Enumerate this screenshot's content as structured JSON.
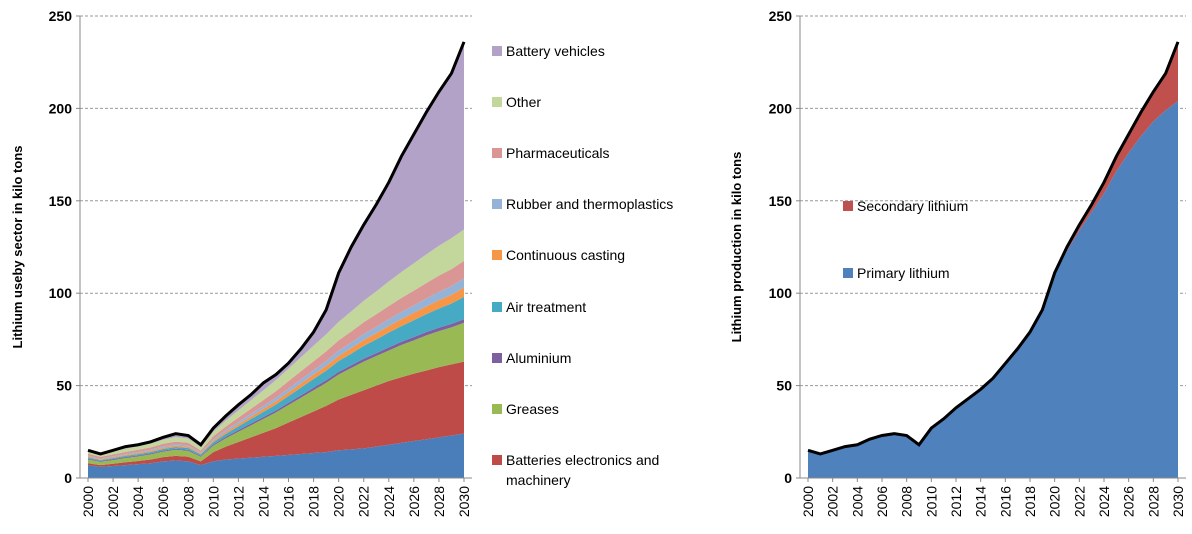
{
  "chart_data": [
    {
      "type": "area",
      "stacked": true,
      "legend": "right",
      "grid": true,
      "y_label": "Lithium useby sector  in kilo tons",
      "x": [
        2000,
        2001,
        2002,
        2003,
        2004,
        2005,
        2006,
        2007,
        2008,
        2009,
        2010,
        2011,
        2012,
        2013,
        2014,
        2015,
        2016,
        2017,
        2018,
        2019,
        2020,
        2021,
        2022,
        2023,
        2024,
        2025,
        2026,
        2027,
        2028,
        2029,
        2030
      ],
      "xlim": [
        2000,
        2030
      ],
      "xticks": [
        2000,
        2002,
        2004,
        2006,
        2008,
        2010,
        2012,
        2014,
        2016,
        2018,
        2020,
        2022,
        2024,
        2026,
        2028,
        2030
      ],
      "ylim": [
        0,
        250
      ],
      "yticks": [
        0,
        50,
        100,
        150,
        200,
        250
      ],
      "series": [
        {
          "color": "#4a7ebb",
          "values": [
            7,
            6,
            6.5,
            7,
            7.5,
            8,
            9,
            9.5,
            9,
            7,
            9,
            10,
            10.5,
            11,
            11.5,
            12,
            12.5,
            13,
            13.5,
            14,
            15,
            15.5,
            16,
            17,
            18,
            19,
            20,
            21,
            22,
            23,
            24
          ]
        },
        {
          "name": "Batteries electronics and machinery",
          "color": "#be4b48",
          "values": [
            1,
            1,
            1.2,
            1.5,
            1.7,
            2,
            2.3,
            2.5,
            2.5,
            2,
            5,
            7,
            9,
            11,
            13,
            15,
            17.5,
            20,
            22.5,
            25,
            27.5,
            29.5,
            31.5,
            33,
            34.5,
            35.5,
            36.5,
            37.2,
            38,
            38.5,
            39
          ]
        },
        {
          "name": "Greases",
          "color": "#98b954",
          "values": [
            2,
            1.8,
            2,
            2.3,
            2.5,
            2.8,
            3,
            3.3,
            3.2,
            2.5,
            3.5,
            4.5,
            5.5,
            6.5,
            7.5,
            8.5,
            9.5,
            10.5,
            11.5,
            12.5,
            13.5,
            14.5,
            15.5,
            16,
            16.5,
            17.5,
            18,
            19,
            19.5,
            20,
            21
          ]
        },
        {
          "name": "Aluminium",
          "color": "#7d60a0",
          "values": [
            0.5,
            0.4,
            0.5,
            0.5,
            0.5,
            0.5,
            0.5,
            0.5,
            0.5,
            0.5,
            0.7,
            0.8,
            0.9,
            1,
            1,
            1.1,
            1.2,
            1.3,
            1.4,
            1.4,
            1.5,
            1.5,
            1.6,
            1.6,
            1.7,
            1.7,
            1.8,
            1.8,
            1.9,
            1.9,
            2
          ]
        },
        {
          "name": "Air treatment",
          "color": "#46aac5",
          "values": [
            0.6,
            0.5,
            0.6,
            0.7,
            0.7,
            0.8,
            0.9,
            1,
            1,
            0.8,
            1.2,
            1.6,
            2,
            2.4,
            2.8,
            3.2,
            3.7,
            4.2,
            4.7,
            5.2,
            5.8,
            6.3,
            6.9,
            7.4,
            8,
            8.5,
            9.1,
            9.7,
            10.3,
            11,
            12
          ]
        },
        {
          "name": "Continuous casting",
          "color": "#f79646",
          "values": [
            0.5,
            0.4,
            0.5,
            0.5,
            0.6,
            0.6,
            0.7,
            0.7,
            0.7,
            0.5,
            0.8,
            1,
            1.2,
            1.4,
            1.6,
            1.8,
            2,
            2.2,
            2.4,
            2.6,
            2.8,
            3,
            3.2,
            3.4,
            3.6,
            3.8,
            4,
            4.2,
            4.5,
            4.7,
            5
          ]
        },
        {
          "name": "Rubber and thermoplastics",
          "color": "#95b3d7",
          "values": [
            0.5,
            0.4,
            0.5,
            0.5,
            0.6,
            0.6,
            0.7,
            0.7,
            0.7,
            0.5,
            0.8,
            1,
            1.2,
            1.4,
            1.6,
            1.8,
            2,
            2.2,
            2.4,
            2.6,
            2.8,
            3,
            3.2,
            3.4,
            3.6,
            3.8,
            4,
            4.2,
            4.5,
            4.7,
            5
          ]
        },
        {
          "name": "Pharmaceuticals",
          "color": "#d99694",
          "values": [
            1,
            0.9,
            1,
            1.1,
            1.2,
            1.3,
            1.4,
            1.5,
            1.5,
            1.1,
            1.6,
            2,
            2.4,
            2.8,
            3.2,
            3.6,
            4,
            4.4,
            4.8,
            5.2,
            5.6,
            6,
            6.4,
            6.8,
            7.2,
            7.6,
            8,
            8.4,
            8.8,
            9.2,
            9.5
          ]
        },
        {
          "name": "Other",
          "color": "#c3d69b",
          "values": [
            1.5,
            1.3,
            1.5,
            1.7,
            1.8,
            2,
            2.2,
            2.4,
            2.3,
            1.8,
            2.5,
            3.2,
            3.9,
            4.6,
            5.3,
            6,
            6.8,
            7.6,
            8.4,
            9.2,
            10,
            10.8,
            11.6,
            12.4,
            13.2,
            14,
            14.8,
            15.5,
            16.2,
            16.8,
            17
          ]
        },
        {
          "name": "Battery vehicles",
          "color": "#b3a2c7",
          "values": [
            0.4,
            0.3,
            0.7,
            1.2,
            0.9,
            1,
            1.3,
            1.9,
            1.6,
            1.3,
            1.9,
            2.5,
            3,
            3,
            4,
            3,
            3,
            4.6,
            7.4,
            13.3,
            26.5,
            34.9,
            41.1,
            47,
            53.7,
            62.6,
            69.8,
            77,
            83.3,
            89.2,
            101.5
          ]
        }
      ]
    },
    {
      "type": "area",
      "stacked": true,
      "legend": "inside",
      "grid": true,
      "y_label": "Lithium production in kilo tons",
      "x": [
        2000,
        2001,
        2002,
        2003,
        2004,
        2005,
        2006,
        2007,
        2008,
        2009,
        2010,
        2011,
        2012,
        2013,
        2014,
        2015,
        2016,
        2017,
        2018,
        2019,
        2020,
        2021,
        2022,
        2023,
        2024,
        2025,
        2026,
        2027,
        2028,
        2029,
        2030
      ],
      "xlim": [
        2000,
        2030
      ],
      "xticks": [
        2000,
        2002,
        2004,
        2006,
        2008,
        2010,
        2012,
        2014,
        2016,
        2018,
        2020,
        2022,
        2024,
        2026,
        2028,
        2030
      ],
      "ylim": [
        0,
        250
      ],
      "yticks": [
        0,
        50,
        100,
        150,
        200,
        250
      ],
      "series": [
        {
          "name": "Primary lithium",
          "color": "#4f81bd",
          "values": [
            15,
            13,
            15,
            17,
            18,
            21,
            23,
            24,
            23,
            18,
            27,
            32,
            38,
            43,
            48,
            54,
            62,
            70,
            79,
            90.5,
            110,
            123,
            134,
            144,
            154,
            166,
            176,
            185,
            193,
            199,
            204
          ]
        },
        {
          "name": "Secondary lithium",
          "color": "#c0504d",
          "values": [
            0,
            0,
            0,
            0,
            0,
            0,
            0,
            0,
            0,
            0,
            0,
            0,
            0,
            0,
            0,
            0,
            0,
            0,
            0,
            0.5,
            1,
            2,
            3,
            4,
            6,
            8,
            10,
            13,
            16,
            20,
            32
          ]
        }
      ]
    }
  ]
}
